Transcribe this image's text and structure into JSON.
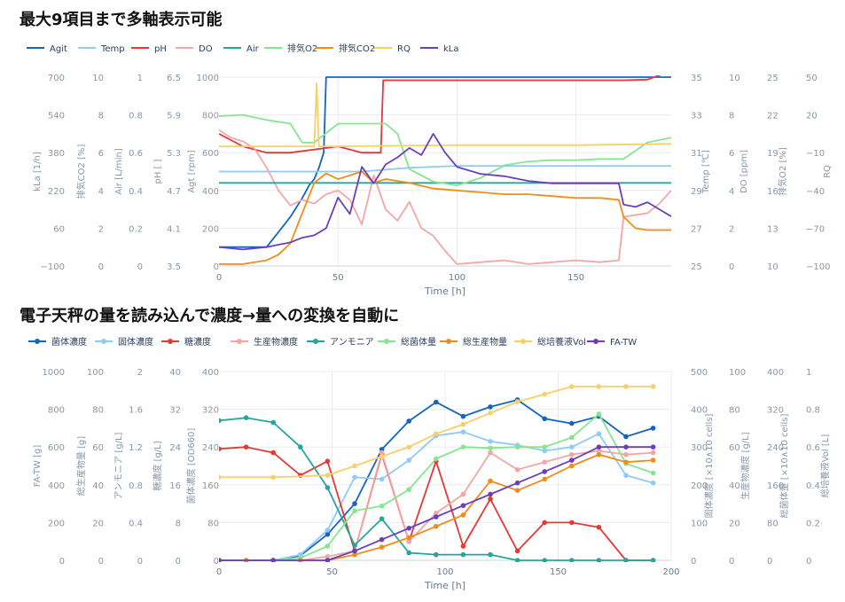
{
  "headings": {
    "top": "最大9項目まで多軸表示可能",
    "bottom": "電子天秤の量を読み込んで濃度→量への変換を自動に"
  },
  "chart_data": [
    {
      "type": "line",
      "xlabel": "Time [h]",
      "xlim": [
        0,
        190
      ],
      "x_ticks": [
        "0",
        "50",
        "100",
        "150"
      ],
      "legend_position": "top-left",
      "grid": true,
      "left_axes": [
        {
          "label": "kLa [1/h]",
          "ticks": [
            "−100",
            "60",
            "220",
            "380",
            "540",
            "700"
          ]
        },
        {
          "label": "排気CO2 [%]",
          "ticks": [
            "0",
            "2",
            "4",
            "6",
            "8",
            "10"
          ]
        },
        {
          "label": "Air [L/min]",
          "ticks": [
            "0",
            "0.2",
            "0.4",
            "0.6",
            "0.8",
            "1"
          ]
        },
        {
          "label": "pH [ ]",
          "ticks": [
            "3.5",
            "4.1",
            "4.7",
            "5.3",
            "5.9",
            "6.5"
          ]
        },
        {
          "label": "Agt [rpm]",
          "ticks": [
            "0",
            "200",
            "400",
            "600",
            "800",
            "1000"
          ]
        }
      ],
      "right_axes": [
        {
          "label": "Temp [℃]",
          "ticks": [
            "25",
            "27",
            "29",
            "31",
            "33",
            "35"
          ]
        },
        {
          "label": "DO [ppm]",
          "ticks": [
            "0",
            "2",
            "4",
            "6",
            "8",
            "10"
          ]
        },
        {
          "label": "排気O2 [%]",
          "ticks": [
            "10",
            "13",
            "16",
            "19",
            "22",
            "25"
          ]
        },
        {
          "label": "RQ",
          "ticks": [
            "−100",
            "−70",
            "−40",
            "−10",
            "20",
            "50"
          ]
        }
      ],
      "series": [
        {
          "name": "Agit",
          "color": "#1565c0",
          "unit_range": [
            0,
            1000
          ],
          "x": [
            0,
            10,
            20,
            25,
            30,
            35,
            38,
            40,
            42,
            44,
            45,
            46,
            50,
            100,
            150,
            190
          ],
          "values": [
            100,
            100,
            100,
            180,
            260,
            360,
            430,
            460,
            520,
            600,
            1000,
            1000,
            1000,
            1000,
            1000,
            1000
          ]
        },
        {
          "name": "Temp",
          "color": "#90caf9",
          "unit_range": [
            25,
            35
          ],
          "x": [
            0,
            20,
            40,
            60,
            80,
            100,
            120,
            140,
            160,
            170,
            180,
            190
          ],
          "values": [
            30,
            30,
            30,
            30,
            30.2,
            30.3,
            30.3,
            30.3,
            30.3,
            30.3,
            30.3,
            30.3
          ]
        },
        {
          "name": "pH",
          "color": "#e53935",
          "unit_range": [
            3.5,
            6.5
          ],
          "x": [
            0,
            5,
            10,
            15,
            20,
            30,
            40,
            50,
            60,
            68,
            69,
            80,
            100,
            120,
            140,
            160,
            170,
            180,
            190
          ],
          "values": [
            5.6,
            5.5,
            5.4,
            5.35,
            5.3,
            5.3,
            5.35,
            5.4,
            5.3,
            5.3,
            6.45,
            6.45,
            6.45,
            6.45,
            6.45,
            6.45,
            6.45,
            6.46,
            6.6
          ]
        },
        {
          "name": "DO",
          "color": "#f4a6a6",
          "unit_range": [
            0,
            10
          ],
          "x": [
            0,
            5,
            10,
            15,
            20,
            25,
            30,
            35,
            40,
            45,
            50,
            55,
            60,
            65,
            70,
            75,
            80,
            85,
            90,
            95,
            100,
            110,
            120,
            130,
            140,
            150,
            160,
            168,
            170,
            175,
            180,
            185,
            190
          ],
          "values": [
            7.2,
            6.8,
            6.6,
            6.2,
            5.2,
            4,
            3.2,
            3.5,
            3.3,
            3.8,
            4,
            3.5,
            2.2,
            4.8,
            3,
            2.4,
            3.4,
            2,
            1.6,
            0.8,
            0.1,
            0.2,
            0.3,
            0.1,
            0.2,
            0.3,
            0.2,
            0.3,
            2.6,
            2.7,
            2.8,
            3.3,
            4
          ]
        },
        {
          "name": "Air",
          "color": "#26a69a",
          "unit_range": [
            0,
            1
          ],
          "x": [
            0,
            50,
            100,
            150,
            190
          ],
          "values": [
            0.44,
            0.44,
            0.44,
            0.44,
            0.44
          ]
        },
        {
          "name": "排気O2",
          "color": "#86e58f",
          "unit_range": [
            10,
            25
          ],
          "x": [
            0,
            10,
            20,
            30,
            35,
            40,
            50,
            60,
            70,
            75,
            80,
            90,
            100,
            110,
            120,
            130,
            140,
            150,
            160,
            170,
            180,
            190
          ],
          "values": [
            21.9,
            22,
            21.6,
            21.3,
            19.8,
            19.8,
            21.3,
            21.3,
            21.3,
            20.5,
            17.7,
            16.7,
            16.4,
            17,
            18,
            18.3,
            18.4,
            18.4,
            18.5,
            18.5,
            19.8,
            20.2
          ]
        },
        {
          "name": "排気CO2",
          "color": "#f28c18",
          "unit_range": [
            0,
            10
          ],
          "x": [
            0,
            10,
            20,
            25,
            30,
            35,
            40,
            45,
            50,
            55,
            60,
            65,
            70,
            80,
            90,
            100,
            110,
            120,
            130,
            140,
            150,
            160,
            168,
            170,
            175,
            180,
            190
          ],
          "values": [
            0.1,
            0.1,
            0.3,
            0.6,
            1.2,
            2.8,
            4.4,
            4.9,
            4.6,
            4.8,
            5,
            4.4,
            4.6,
            4.4,
            4.1,
            4.0,
            3.9,
            3.8,
            3.8,
            3.7,
            3.6,
            3.6,
            3.5,
            2.6,
            2.0,
            1.9,
            1.9
          ]
        },
        {
          "name": "RQ",
          "color": "#f7cf6b",
          "unit_range": [
            -100,
            50
          ],
          "x": [
            0,
            40,
            41,
            42,
            50,
            100,
            150,
            190
          ],
          "values": [
            -5,
            -5,
            45,
            -5,
            -5,
            -4,
            -4,
            -3
          ]
        },
        {
          "name": "kLa",
          "color": "#6a3fbf",
          "unit_range": [
            -100,
            700
          ],
          "x": [
            0,
            10,
            20,
            25,
            30,
            35,
            40,
            45,
            50,
            55,
            60,
            65,
            70,
            75,
            80,
            85,
            90,
            95,
            100,
            110,
            120,
            130,
            140,
            150,
            160,
            168,
            170,
            175,
            180,
            185,
            190
          ],
          "values": [
            -20,
            -30,
            -20,
            -10,
            0,
            20,
            30,
            60,
            190,
            120,
            320,
            250,
            330,
            360,
            400,
            370,
            460,
            380,
            320,
            290,
            280,
            260,
            250,
            250,
            250,
            250,
            160,
            150,
            170,
            140,
            110
          ]
        }
      ]
    },
    {
      "type": "line",
      "xlabel": "Time [h]",
      "xlim": [
        0,
        200
      ],
      "x_ticks": [
        "0",
        "50",
        "100",
        "150",
        "200"
      ],
      "legend_position": "top-left",
      "grid": true,
      "markers": true,
      "left_axes": [
        {
          "label": "FA-TW [g]",
          "ticks": [
            "0",
            "200",
            "400",
            "600",
            "800",
            "1000"
          ]
        },
        {
          "label": "総生産物量 [g]",
          "ticks": [
            "0",
            "20",
            "40",
            "60",
            "80",
            "100"
          ]
        },
        {
          "label": "アンモニア [g/L]",
          "ticks": [
            "0",
            "0.4",
            "0.8",
            "1.2",
            "1.6",
            "2"
          ]
        },
        {
          "label": "糖濃度 [g/L]",
          "ticks": [
            "0",
            "8",
            "16",
            "24",
            "32",
            "40"
          ]
        },
        {
          "label": "菌体濃度 [OD660]",
          "ticks": [
            "0",
            "80",
            "160",
            "240",
            "320",
            "400"
          ]
        }
      ],
      "right_axes": [
        {
          "label": "固体濃度 [×10∧10 cells]",
          "ticks": [
            "0",
            "100",
            "200",
            "300",
            "400",
            "500"
          ]
        },
        {
          "label": "生産物濃度 [g/L]",
          "ticks": [
            "0",
            "20",
            "40",
            "60",
            "80",
            "100"
          ]
        },
        {
          "label": "総菌体量 [×10∧10 cells]",
          "ticks": [
            "0",
            "80",
            "160",
            "240",
            "320",
            "400"
          ]
        },
        {
          "label": "総培養液Vol [L]",
          "ticks": [
            "0",
            "0.2",
            "0.4",
            "0.6",
            "0.8",
            "1"
          ]
        }
      ],
      "series": [
        {
          "name": "菌体濃度",
          "color": "#1565c0",
          "unit_range": [
            0,
            400
          ],
          "x": [
            0,
            12,
            24,
            36,
            48,
            60,
            72,
            84,
            96,
            108,
            120,
            132,
            144,
            156,
            168,
            180,
            192
          ],
          "values": [
            0,
            0,
            0,
            10,
            55,
            120,
            235,
            295,
            335,
            305,
            325,
            340,
            300,
            290,
            305,
            262,
            280
          ]
        },
        {
          "name": "固体濃度",
          "color": "#90caf9",
          "unit_range": [
            0,
            500
          ],
          "x": [
            0,
            12,
            24,
            36,
            48,
            60,
            72,
            84,
            96,
            108,
            120,
            132,
            144,
            156,
            168,
            180,
            192
          ],
          "values": [
            0,
            0,
            0,
            15,
            80,
            220,
            215,
            265,
            330,
            340,
            315,
            305,
            290,
            300,
            335,
            225,
            205
          ]
        },
        {
          "name": "糖濃度",
          "color": "#e53935",
          "unit_range": [
            0,
            40
          ],
          "x": [
            0,
            12,
            24,
            36,
            48,
            60,
            72,
            84,
            96,
            108,
            120,
            132,
            144,
            156,
            168,
            180,
            192
          ],
          "values": [
            23.6,
            24,
            22.8,
            18,
            21,
            2,
            22.5,
            4,
            21,
            3,
            13,
            2,
            8,
            8,
            7,
            0,
            0
          ]
        },
        {
          "name": "生産物濃度",
          "color": "#f4a6a6",
          "unit_range": [
            0,
            100
          ],
          "x": [
            0,
            12,
            24,
            36,
            48,
            60,
            72,
            84,
            96,
            108,
            120,
            132,
            144,
            156,
            168,
            180,
            192
          ],
          "values": [
            0,
            0,
            0,
            0,
            2,
            5,
            57,
            10,
            25,
            35,
            57,
            48,
            52,
            56,
            58,
            56,
            57
          ]
        },
        {
          "name": "アンモニア",
          "color": "#26a69a",
          "unit_range": [
            0,
            2
          ],
          "x": [
            0,
            12,
            24,
            36,
            48,
            60,
            72,
            84,
            96,
            108,
            120,
            132,
            144,
            156,
            168,
            180,
            192
          ],
          "values": [
            1.48,
            1.51,
            1.46,
            1.2,
            0.77,
            0.16,
            0.44,
            0.08,
            0.06,
            0.06,
            0.06,
            0,
            0,
            0,
            0,
            0,
            0
          ]
        },
        {
          "name": "総菌体量",
          "color": "#86e58f",
          "unit_range": [
            0,
            400
          ],
          "x": [
            0,
            12,
            24,
            36,
            48,
            60,
            72,
            84,
            96,
            108,
            120,
            132,
            144,
            156,
            168,
            180,
            192
          ],
          "values": [
            0,
            0,
            0,
            5,
            30,
            105,
            115,
            150,
            215,
            240,
            238,
            240,
            240,
            260,
            310,
            205,
            185
          ]
        },
        {
          "name": "総生産物量",
          "color": "#f28c18",
          "unit_range": [
            0,
            100
          ],
          "x": [
            0,
            12,
            24,
            36,
            48,
            60,
            72,
            84,
            96,
            108,
            120,
            132,
            144,
            156,
            168,
            180,
            192
          ],
          "values": [
            0,
            0,
            0,
            0,
            0,
            3,
            7,
            12,
            18,
            24,
            42,
            37,
            43,
            50,
            56,
            52,
            53
          ]
        },
        {
          "name": "総培養液Vol",
          "color": "#f7cf6b",
          "unit_range": [
            0,
            1
          ],
          "x": [
            0,
            24,
            48,
            60,
            72,
            84,
            96,
            108,
            120,
            132,
            144,
            156,
            168,
            180,
            192
          ],
          "values": [
            0.44,
            0.44,
            0.45,
            0.5,
            0.55,
            0.6,
            0.67,
            0.72,
            0.78,
            0.84,
            0.88,
            0.92,
            0.92,
            0.92,
            0.92
          ]
        },
        {
          "name": "FA-TW",
          "color": "#6a3fbf",
          "unit_range": [
            0,
            1000
          ],
          "x": [
            0,
            24,
            48,
            60,
            72,
            84,
            96,
            108,
            120,
            132,
            144,
            156,
            168,
            180,
            192
          ],
          "values": [
            0,
            0,
            0,
            50,
            110,
            170,
            230,
            290,
            350,
            410,
            470,
            530,
            600,
            600,
            600
          ]
        }
      ]
    }
  ]
}
